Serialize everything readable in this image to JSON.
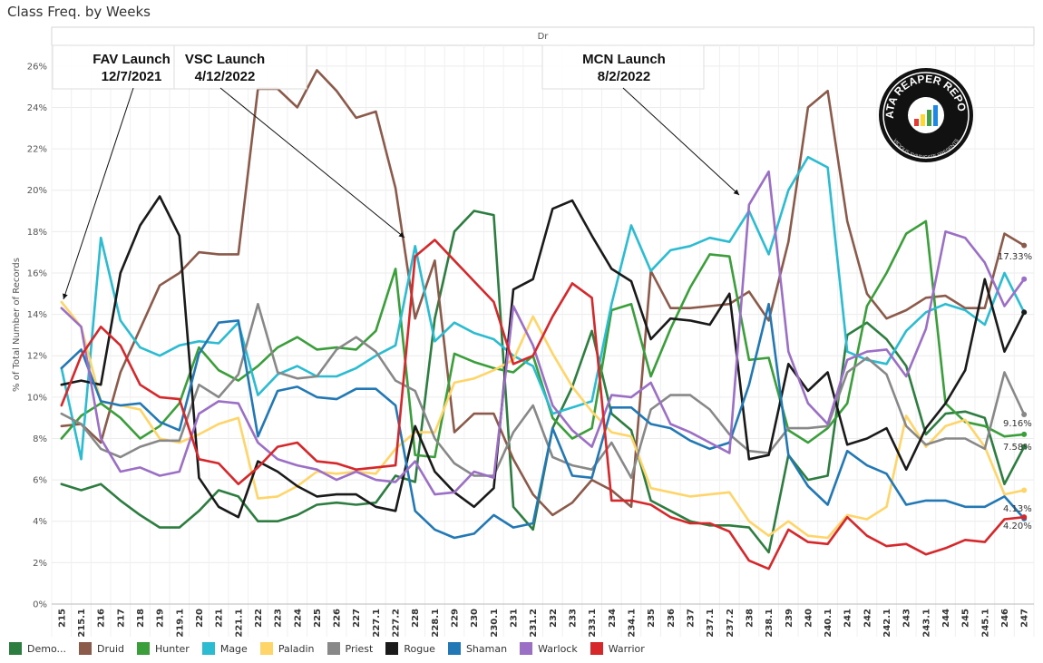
{
  "title": "Class Freq. by Weeks",
  "header_label": "Dr",
  "logo": {
    "text": "DATA REAPER REPORT",
    "subtext": "VICIOUS SYNDICATE PRESENTS"
  },
  "annotations": [
    {
      "name": "FAV Launch",
      "date": "12/7/2021",
      "target_x": "215"
    },
    {
      "name": "VSC Launch",
      "date": "4/12/2022",
      "target_x": "227.2"
    },
    {
      "name": "MCN Launch",
      "date": "8/2/2022",
      "target_x": "237.2"
    }
  ],
  "end_labels": [
    "17.33%",
    "9.16%",
    "7.58%",
    "4.13%",
    "4.20%"
  ],
  "chart_data": {
    "type": "line",
    "ylabel": "% of Total Number of Records",
    "ylim": [
      0,
      27
    ],
    "yticks": [
      0,
      2,
      4,
      6,
      8,
      10,
      12,
      14,
      16,
      18,
      20,
      22,
      24,
      26
    ],
    "ytick_labels": [
      "0%",
      "2%",
      "4%",
      "6%",
      "8%",
      "10%",
      "12%",
      "14%",
      "16%",
      "18%",
      "20%",
      "22%",
      "24%",
      "26%"
    ],
    "grid": true,
    "legend_position": "bottom",
    "x": [
      "215",
      "215.1",
      "216",
      "217",
      "218",
      "219",
      "219.1",
      "220",
      "221",
      "221.1",
      "222",
      "223",
      "224",
      "225",
      "226",
      "227",
      "227.1",
      "227.2",
      "228",
      "228.1",
      "229",
      "230",
      "230.1",
      "231",
      "231.2",
      "232",
      "233",
      "233.1",
      "234",
      "234.1",
      "235",
      "236",
      "237",
      "237.1",
      "237.2",
      "238",
      "238.1",
      "239",
      "240",
      "240.1",
      "241",
      "242",
      "242.1",
      "243",
      "243.1",
      "244",
      "245",
      "245.1",
      "246",
      "247"
    ],
    "series": [
      {
        "name": "Demo...",
        "color": "#2e7d40",
        "values": [
          5.8,
          5.5,
          5.8,
          5.0,
          4.3,
          3.7,
          3.7,
          4.5,
          5.5,
          5.2,
          4.0,
          4.0,
          4.3,
          4.8,
          4.9,
          4.8,
          4.9,
          6.2,
          5.9,
          13.8,
          18.0,
          19.0,
          18.8,
          4.7,
          3.6,
          8.5,
          10.5,
          13.2,
          9.2,
          8.4,
          5.0,
          4.5,
          4.0,
          3.8,
          3.8,
          3.7,
          2.5,
          7.2,
          6.0,
          6.2,
          13.0,
          13.6,
          12.8,
          11.5,
          8.2,
          9.2,
          9.3,
          9.0,
          5.8,
          7.6
        ]
      },
      {
        "name": "Druid",
        "color": "#8c5a4a",
        "values": [
          8.6,
          8.7,
          7.8,
          11.2,
          13.3,
          15.4,
          16.0,
          17.0,
          16.9,
          16.9,
          24.9,
          24.9,
          24.0,
          25.8,
          24.8,
          23.5,
          23.8,
          20.1,
          13.8,
          16.6,
          8.3,
          9.2,
          9.2,
          7.0,
          5.3,
          4.3,
          4.9,
          6.0,
          5.5,
          4.7,
          16.1,
          14.3,
          14.3,
          14.4,
          14.5,
          15.1,
          13.7,
          17.5,
          24.0,
          24.8,
          18.5,
          15.0,
          13.8,
          14.2,
          14.8,
          14.9,
          14.3,
          14.3,
          17.9,
          17.33
        ]
      },
      {
        "name": "Hunter",
        "color": "#3a9e3a",
        "values": [
          8.0,
          9.1,
          9.7,
          9.0,
          8.0,
          8.6,
          9.7,
          12.4,
          11.3,
          10.8,
          11.5,
          12.4,
          12.9,
          12.3,
          12.4,
          12.3,
          13.2,
          16.2,
          7.2,
          7.1,
          12.1,
          11.7,
          11.4,
          11.2,
          12.0,
          9.0,
          8.0,
          8.5,
          14.2,
          14.5,
          11.0,
          13.3,
          15.3,
          16.9,
          16.8,
          11.8,
          11.9,
          8.4,
          7.8,
          8.5,
          9.7,
          14.4,
          16.0,
          17.9,
          18.5,
          9.7,
          8.8,
          8.6,
          8.1,
          8.2
        ]
      },
      {
        "name": "Mage",
        "color": "#2bbcd1",
        "values": [
          11.4,
          7.0,
          17.7,
          13.7,
          12.4,
          12.0,
          12.5,
          12.7,
          12.6,
          13.6,
          10.1,
          11.1,
          11.5,
          11.0,
          11.0,
          11.4,
          12.0,
          12.5,
          17.3,
          12.7,
          13.6,
          13.1,
          12.8,
          12.0,
          11.5,
          9.2,
          9.5,
          9.8,
          14.5,
          18.3,
          16.1,
          17.1,
          17.3,
          17.7,
          17.5,
          19.0,
          16.9,
          20.0,
          21.6,
          21.1,
          12.2,
          11.8,
          11.6,
          13.2,
          14.1,
          14.5,
          14.2,
          13.5,
          16.0,
          14.1
        ]
      },
      {
        "name": "Paladin",
        "color": "#ffd56a",
        "values": [
          14.6,
          13.4,
          9.8,
          9.6,
          9.4,
          8.0,
          7.8,
          8.2,
          8.7,
          9.0,
          5.1,
          5.2,
          5.7,
          6.4,
          6.3,
          6.4,
          6.3,
          7.5,
          8.3,
          8.3,
          10.7,
          10.9,
          11.3,
          11.8,
          13.9,
          12.1,
          10.5,
          9.3,
          8.3,
          8.1,
          5.6,
          5.4,
          5.2,
          5.3,
          5.4,
          4.0,
          3.3,
          4.0,
          3.3,
          3.2,
          4.3,
          4.1,
          4.7,
          9.1,
          7.6,
          8.6,
          8.9,
          7.6,
          5.3,
          5.5
        ]
      },
      {
        "name": "Priest",
        "color": "#888888",
        "values": [
          9.2,
          8.7,
          7.5,
          7.1,
          7.6,
          7.9,
          7.9,
          10.6,
          10.0,
          11.1,
          14.5,
          11.2,
          10.9,
          11.0,
          12.3,
          12.9,
          12.2,
          10.8,
          10.3,
          8.0,
          6.8,
          6.2,
          6.2,
          8.3,
          9.6,
          7.1,
          6.7,
          6.5,
          7.8,
          6.1,
          9.4,
          10.1,
          10.1,
          9.4,
          8.2,
          7.4,
          7.3,
          8.5,
          8.5,
          8.6,
          11.2,
          11.9,
          11.1,
          8.6,
          7.7,
          8.0,
          8.0,
          7.5,
          11.2,
          9.16
        ]
      },
      {
        "name": "Rogue",
        "color": "#1a1a1a",
        "values": [
          10.6,
          10.8,
          10.6,
          16.0,
          18.3,
          19.7,
          17.8,
          6.1,
          4.7,
          4.2,
          6.9,
          6.4,
          5.7,
          5.2,
          5.3,
          5.3,
          4.7,
          4.5,
          8.6,
          6.4,
          5.4,
          4.7,
          5.6,
          15.2,
          15.7,
          19.1,
          19.5,
          17.8,
          16.2,
          15.6,
          12.8,
          13.8,
          13.7,
          13.5,
          15.0,
          7.0,
          7.2,
          11.6,
          10.3,
          11.2,
          7.7,
          8.0,
          8.5,
          6.5,
          8.5,
          9.7,
          11.3,
          15.7,
          12.2,
          14.1
        ]
      },
      {
        "name": "Shaman",
        "color": "#2278b5",
        "values": [
          11.4,
          12.3,
          9.8,
          9.6,
          9.7,
          8.8,
          8.4,
          12.1,
          13.6,
          13.7,
          8.1,
          10.3,
          10.5,
          10.0,
          9.9,
          10.4,
          10.4,
          9.6,
          4.5,
          3.6,
          3.2,
          3.4,
          4.3,
          3.7,
          3.9,
          8.5,
          6.2,
          6.1,
          9.5,
          9.5,
          8.7,
          8.5,
          7.9,
          7.5,
          7.8,
          10.6,
          14.5,
          7.2,
          5.7,
          4.8,
          7.4,
          6.7,
          6.3,
          4.8,
          5.0,
          5.0,
          4.7,
          4.7,
          5.2,
          4.13
        ]
      },
      {
        "name": "Warlock",
        "color": "#9b6fc6",
        "values": [
          14.3,
          13.4,
          8.0,
          6.4,
          6.6,
          6.2,
          6.4,
          9.2,
          9.8,
          9.7,
          7.8,
          7.0,
          6.7,
          6.5,
          6.0,
          6.4,
          6.0,
          5.9,
          6.9,
          5.3,
          5.4,
          6.4,
          6.1,
          14.4,
          12.5,
          9.6,
          8.4,
          7.6,
          10.1,
          10.0,
          10.7,
          8.7,
          8.3,
          7.8,
          7.3,
          19.3,
          20.9,
          12.2,
          9.7,
          8.7,
          11.8,
          12.2,
          12.3,
          11.0,
          13.3,
          18.0,
          17.7,
          16.5,
          14.4,
          15.7
        ]
      },
      {
        "name": "Warrior",
        "color": "#d6272b",
        "values": [
          9.6,
          12.0,
          13.4,
          12.5,
          10.6,
          10.0,
          9.9,
          7.0,
          6.8,
          5.8,
          6.6,
          7.6,
          7.8,
          6.9,
          6.8,
          6.5,
          6.6,
          6.7,
          16.8,
          17.6,
          16.6,
          15.6,
          14.6,
          11.6,
          12.0,
          13.9,
          15.5,
          14.8,
          5.0,
          5.0,
          4.8,
          4.2,
          3.9,
          3.9,
          3.5,
          2.1,
          1.7,
          3.6,
          3.0,
          2.9,
          4.2,
          3.3,
          2.8,
          2.9,
          2.4,
          2.7,
          3.1,
          3.0,
          4.1,
          4.2
        ]
      }
    ]
  }
}
